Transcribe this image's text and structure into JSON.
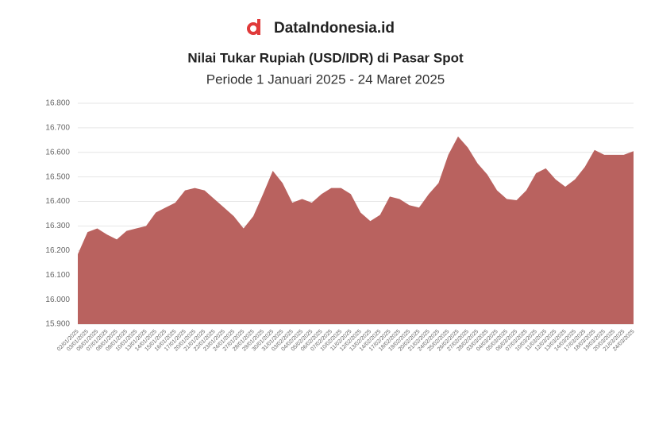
{
  "brand": "DataIndonesia.id",
  "chart_data": {
    "type": "area",
    "title": "Nilai Tukar Rupiah (USD/IDR) di Pasar Spot",
    "subtitle": "Periode 1 Januari 2025 - 24 Maret 2025",
    "categories": [
      "02/01/2025",
      "03/01/2025",
      "06/01/2025",
      "07/01/2025",
      "08/01/2025",
      "09/01/2025",
      "10/01/2025",
      "13/01/2025",
      "14/01/2025",
      "15/01/2025",
      "16/01/2025",
      "17/01/2025",
      "20/01/2025",
      "21/01/2025",
      "22/01/2025",
      "23/01/2025",
      "24/01/2025",
      "27/01/2025",
      "28/01/2025",
      "29/01/2025",
      "30/01/2025",
      "31/01/2025",
      "03/02/2025",
      "04/02/2025",
      "05/02/2025",
      "06/02/2025",
      "07/02/2025",
      "10/02/2025",
      "11/02/2025",
      "12/02/2025",
      "13/02/2025",
      "14/02/2025",
      "17/02/2025",
      "18/02/2025",
      "19/02/2025",
      "20/02/2025",
      "21/02/2025",
      "24/02/2025",
      "25/02/2025",
      "26/02/2025",
      "27/02/2025",
      "28/02/2025",
      "03/03/2025",
      "04/03/2025",
      "05/03/2025",
      "06/03/2025",
      "07/03/2025",
      "10/03/2025",
      "11/03/2025",
      "12/03/2025",
      "13/03/2025",
      "14/03/2025",
      "17/03/2025",
      "18/03/2025",
      "19/03/2025",
      "20/03/2025",
      "21/03/2025",
      "24/03/2025"
    ],
    "values": [
      16185,
      16275,
      16290,
      16265,
      16245,
      16280,
      16290,
      16300,
      16355,
      16375,
      16395,
      16445,
      16455,
      16445,
      16410,
      16375,
      16340,
      16290,
      16340,
      16430,
      16525,
      16475,
      16395,
      16410,
      16395,
      16430,
      16455,
      16455,
      16430,
      16355,
      16320,
      16345,
      16420,
      16410,
      16385,
      16375,
      16430,
      16475,
      16590,
      16665,
      16620,
      16555,
      16510,
      16445,
      16410,
      16405,
      16445,
      16515,
      16535,
      16490,
      16460,
      16490,
      16540,
      16610,
      16590,
      16590,
      16590,
      16605
    ],
    "color": "#b9625f",
    "ylim": [
      15900,
      16800
    ],
    "yticks": [
      {
        "value": 15900,
        "label": "15.900"
      },
      {
        "value": 16000,
        "label": "16.000"
      },
      {
        "value": 16100,
        "label": "16.100"
      },
      {
        "value": 16200,
        "label": "16.200"
      },
      {
        "value": 16300,
        "label": "16.300"
      },
      {
        "value": 16400,
        "label": "16.400"
      },
      {
        "value": 16500,
        "label": "16.500"
      },
      {
        "value": 16600,
        "label": "16.600"
      },
      {
        "value": 16700,
        "label": "16.700"
      },
      {
        "value": 16800,
        "label": "16.800"
      }
    ],
    "grid": true
  }
}
